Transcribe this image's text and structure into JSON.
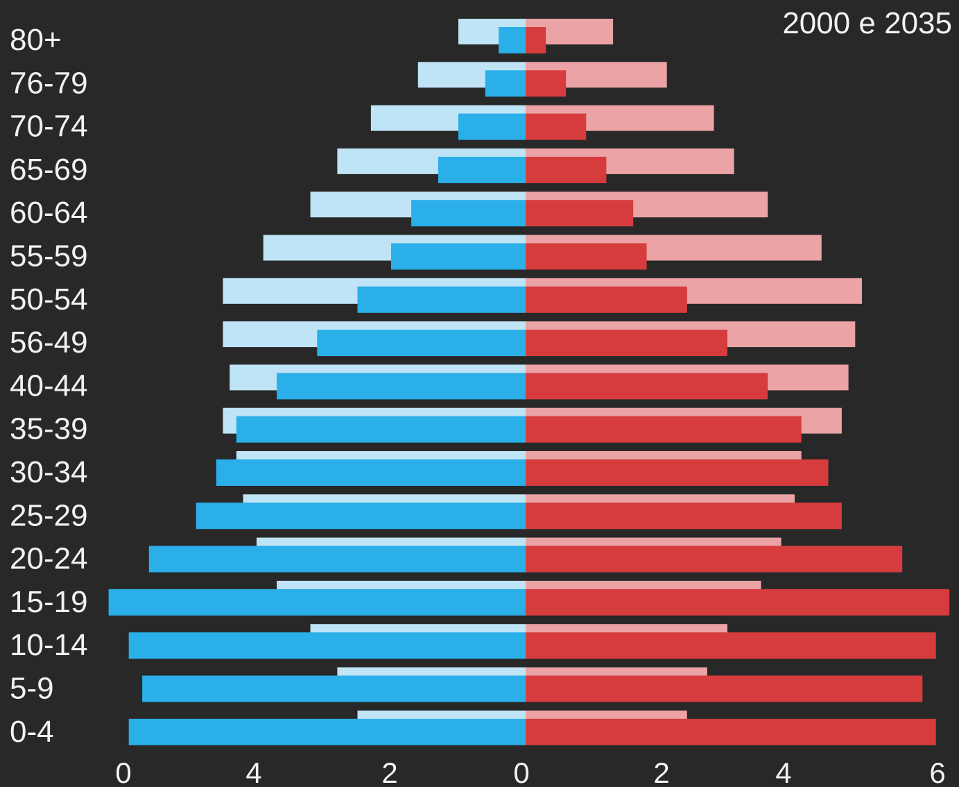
{
  "chart_data": {
    "type": "bar",
    "orientation": "horizontal",
    "title": "2000 e 2035",
    "categories": [
      "80+",
      "76-79",
      "70-74",
      "65-69",
      "60-64",
      "55-59",
      "50-54",
      "56-49",
      "40-44",
      "35-39",
      "30-34",
      "25-29",
      "20-24",
      "15-19",
      "10-14",
      "5-9",
      "0-4"
    ],
    "series": [
      {
        "side": "left",
        "values": [
          1.0,
          1.6,
          2.3,
          2.8,
          3.2,
          3.9,
          4.5,
          4.5,
          4.4,
          4.5,
          4.3,
          4.2,
          4.0,
          3.7,
          3.2,
          2.8,
          2.5
        ],
        "color": "#bfe4f6"
      },
      {
        "side": "right",
        "values": [
          1.3,
          2.1,
          2.8,
          3.1,
          3.6,
          4.4,
          5.0,
          4.9,
          4.8,
          4.7,
          4.1,
          4.0,
          3.8,
          3.5,
          3.0,
          2.7,
          2.4
        ],
        "color": "#eba3a5"
      },
      {
        "side": "left",
        "values": [
          0.4,
          0.6,
          1.0,
          1.3,
          1.7,
          2.0,
          2.5,
          3.1,
          3.7,
          4.3,
          4.6,
          4.9,
          5.6,
          6.2,
          5.9,
          5.7,
          5.9
        ],
        "color": "#2aafe9"
      },
      {
        "side": "right",
        "values": [
          0.3,
          0.6,
          0.9,
          1.2,
          1.6,
          1.8,
          2.4,
          3.0,
          3.6,
          4.1,
          4.5,
          4.7,
          5.6,
          6.3,
          6.1,
          5.9,
          6.1
        ],
        "color": "#d63c3d"
      }
    ],
    "x_ticks_left": [
      "0",
      "4",
      "2",
      "0"
    ],
    "x_ticks_right": [
      "2",
      "4",
      "6"
    ],
    "xlim": [
      -6,
      6
    ],
    "grid": false,
    "legend": "none"
  }
}
